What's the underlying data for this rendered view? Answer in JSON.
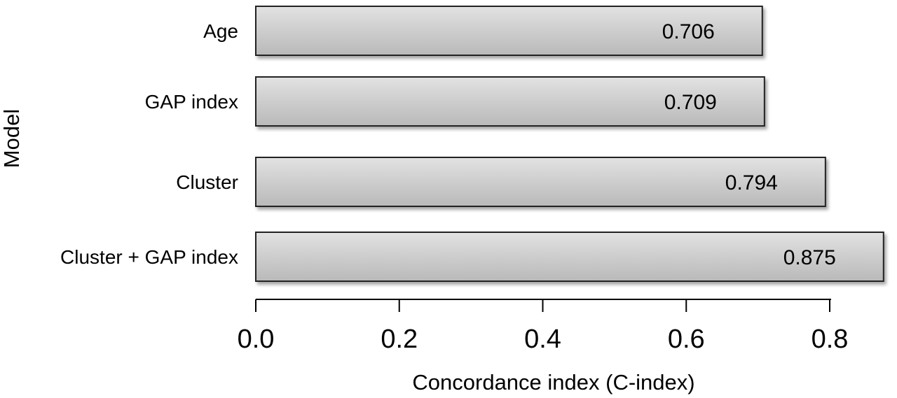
{
  "chart_data": {
    "type": "bar",
    "orientation": "horizontal",
    "categories": [
      "Age",
      "GAP index",
      "Cluster",
      "Cluster + GAP index"
    ],
    "values": [
      0.706,
      0.709,
      0.794,
      0.875
    ],
    "value_labels": [
      "0.706",
      "0.709",
      "0.794",
      "0.875"
    ],
    "xlabel": "Concordance index (C-index)",
    "ylabel": "Model",
    "xticks": [
      "0.0",
      "0.2",
      "0.4",
      "0.6",
      "0.8"
    ],
    "xlim": [
      0,
      0.8
    ],
    "grid": false,
    "bar_color": "#cccccc"
  }
}
